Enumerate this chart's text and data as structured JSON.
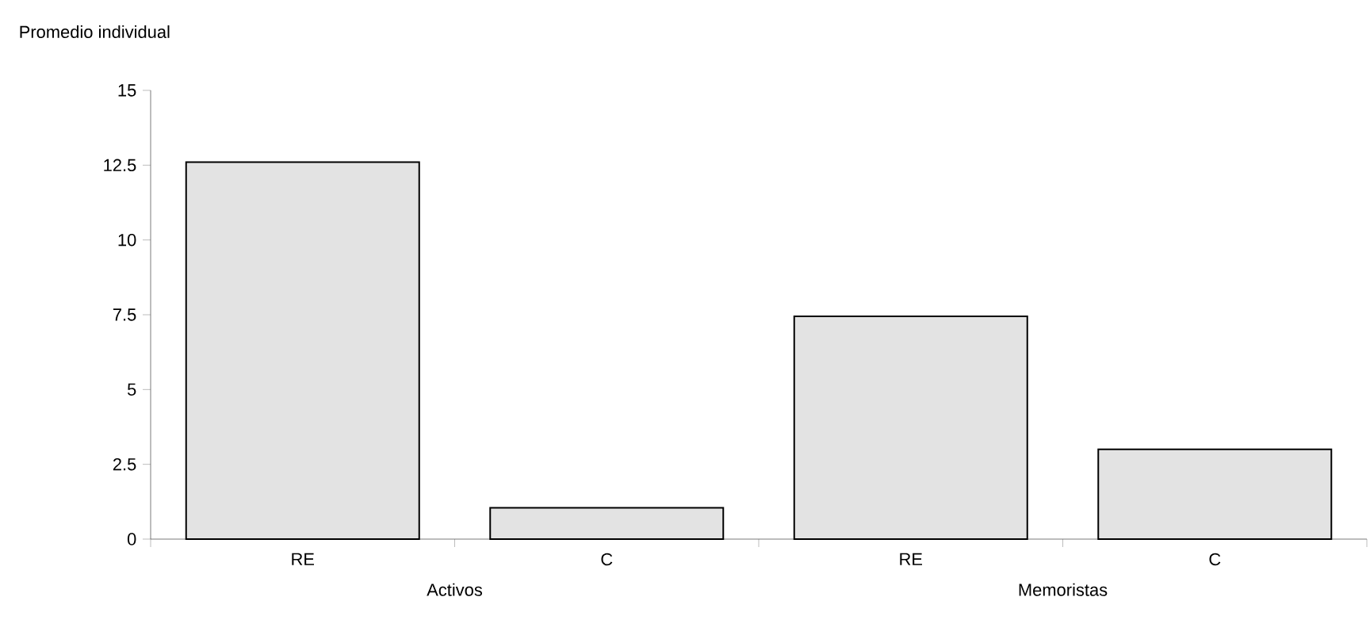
{
  "chart_data": {
    "type": "bar",
    "ylabel": "Promedio individual",
    "categories": [
      "RE",
      "C",
      "RE",
      "C"
    ],
    "values": [
      12.6,
      1.05,
      7.45,
      3.0
    ],
    "color": "#e3e3e3",
    "ylim": [
      0,
      15
    ],
    "yticks": [
      0,
      2.5,
      5,
      7.5,
      10,
      12.5,
      15
    ],
    "annotations": [
      "Activos",
      "Memoristas"
    ]
  }
}
